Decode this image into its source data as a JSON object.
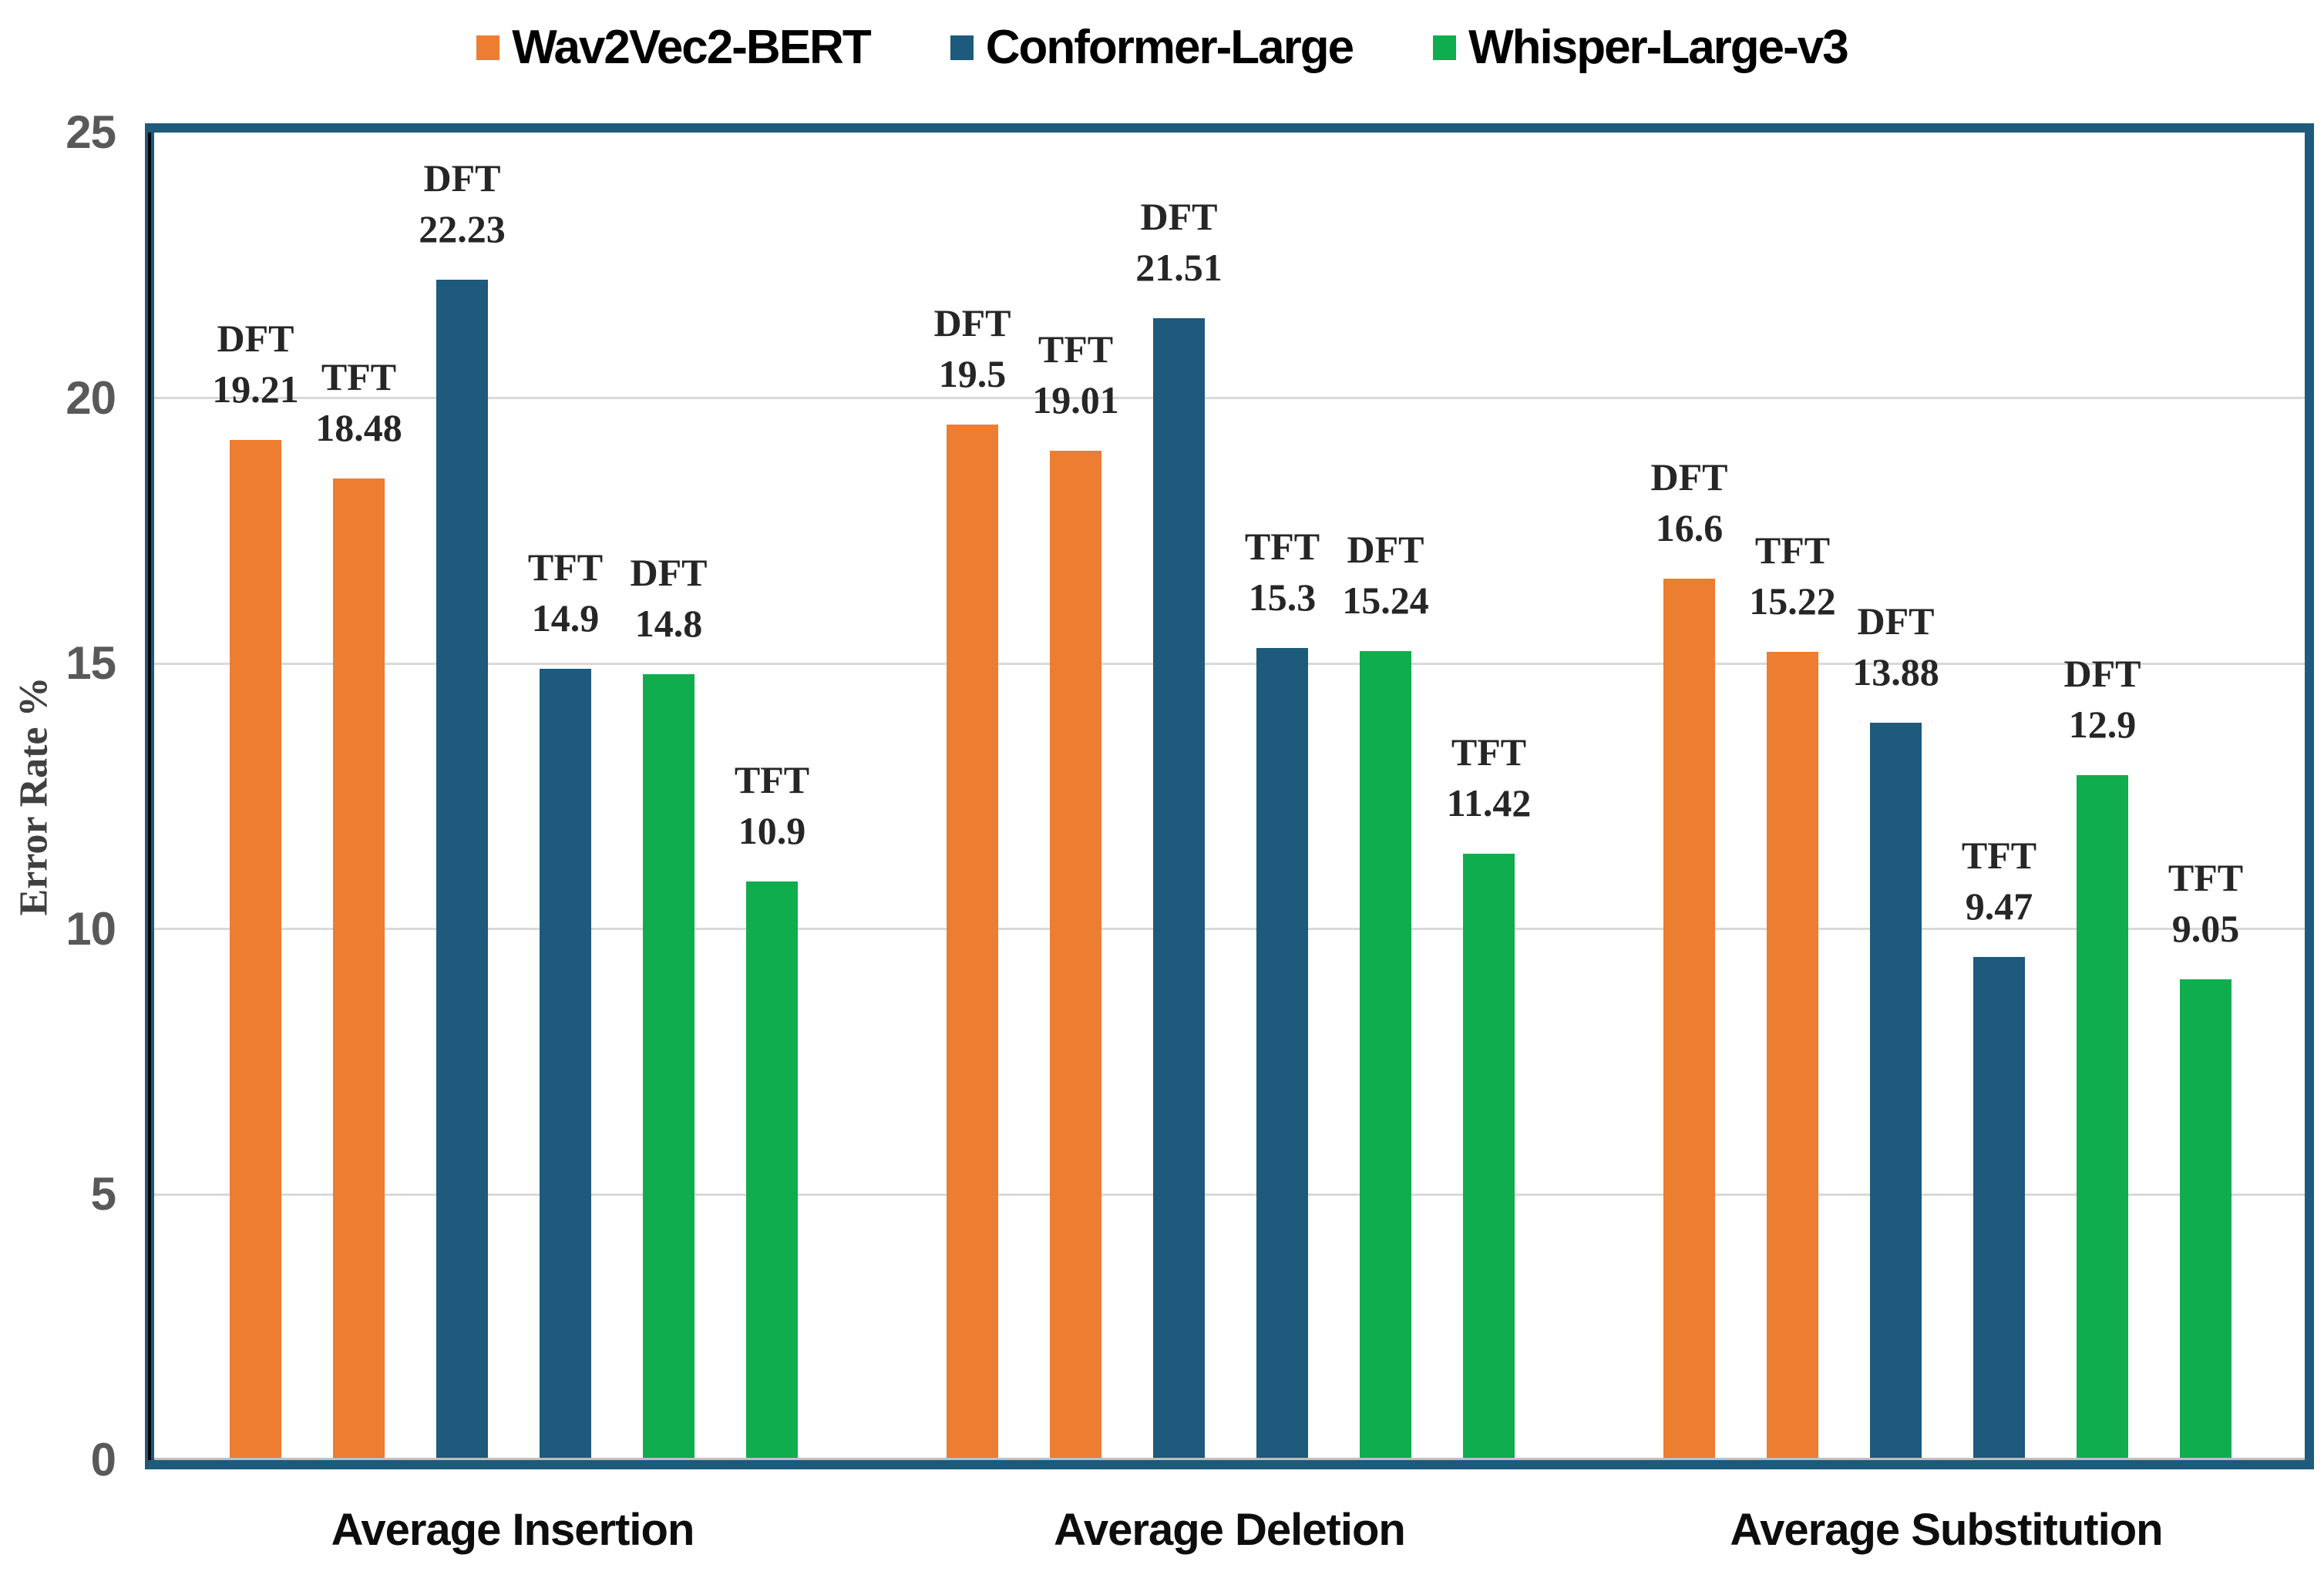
{
  "legend": {
    "items": [
      {
        "label": "Wav2Vec2-BERT",
        "color": "#ED7D31"
      },
      {
        "label": "Conformer-Large",
        "color": "#1D5A7B"
      },
      {
        "label": "Whisper-Large-v3",
        "color": "#10AD4E"
      }
    ]
  },
  "chart_data": {
    "type": "bar",
    "title": "",
    "xlabel": "",
    "ylabel": "Error Rate %",
    "ylim": [
      0,
      25
    ],
    "yticks": [
      0,
      5,
      10,
      15,
      20,
      25
    ],
    "grid": "horizontal",
    "legend_position": "top",
    "frame_color": "#1D5A7B",
    "grid_color": "#D9D9D9",
    "axis_line_color": "#BFBFBF",
    "tick_color": "#595959",
    "bar_label_color": "#262626",
    "categories": [
      "Average Insertion",
      "Average Deletion",
      "Average Substitution"
    ],
    "series": [
      {
        "name": "Wav2Vec2-BERT",
        "color": "#ED7D31",
        "DFT": [
          19.21,
          19.5,
          16.6
        ],
        "TFT": [
          18.48,
          19.01,
          15.22
        ]
      },
      {
        "name": "Conformer-Large",
        "color": "#1D5A7B",
        "DFT": [
          22.23,
          21.51,
          13.88
        ],
        "TFT": [
          14.9,
          15.3,
          9.47
        ]
      },
      {
        "name": "Whisper-Large-v3",
        "color": "#10AD4E",
        "DFT": [
          14.8,
          15.24,
          12.9
        ],
        "TFT": [
          10.9,
          11.42,
          9.05
        ]
      }
    ],
    "groups": [
      {
        "category": "Average Insertion",
        "bars": [
          {
            "series": "Wav2Vec2-BERT",
            "set": "DFT",
            "value": 19.21,
            "display": "19.21"
          },
          {
            "series": "Wav2Vec2-BERT",
            "set": "TFT",
            "value": 18.48,
            "display": "18.48"
          },
          {
            "series": "Conformer-Large",
            "set": "DFT",
            "value": 22.23,
            "display": "22.23"
          },
          {
            "series": "Conformer-Large",
            "set": "TFT",
            "value": 14.9,
            "display": "14.9"
          },
          {
            "series": "Whisper-Large-v3",
            "set": "DFT",
            "value": 14.8,
            "display": "14.8"
          },
          {
            "series": "Whisper-Large-v3",
            "set": "TFT",
            "value": 10.9,
            "display": "10.9"
          }
        ]
      },
      {
        "category": "Average Deletion",
        "bars": [
          {
            "series": "Wav2Vec2-BERT",
            "set": "DFT",
            "value": 19.5,
            "display": "19.5"
          },
          {
            "series": "Wav2Vec2-BERT",
            "set": "TFT",
            "value": 19.01,
            "display": "19.01"
          },
          {
            "series": "Conformer-Large",
            "set": "DFT",
            "value": 21.51,
            "display": "21.51"
          },
          {
            "series": "Conformer-Large",
            "set": "TFT",
            "value": 15.3,
            "display": "15.3"
          },
          {
            "series": "Whisper-Large-v3",
            "set": "DFT",
            "value": 15.24,
            "display": "15.24"
          },
          {
            "series": "Whisper-Large-v3",
            "set": "TFT",
            "value": 11.42,
            "display": "11.42"
          }
        ]
      },
      {
        "category": "Average Substitution",
        "bars": [
          {
            "series": "Wav2Vec2-BERT",
            "set": "DFT",
            "value": 16.6,
            "display": "16.6"
          },
          {
            "series": "Wav2Vec2-BERT",
            "set": "TFT",
            "value": 15.22,
            "display": "15.22"
          },
          {
            "series": "Conformer-Large",
            "set": "DFT",
            "value": 13.88,
            "display": "13.88"
          },
          {
            "series": "Conformer-Large",
            "set": "TFT",
            "value": 9.47,
            "display": "9.47"
          },
          {
            "series": "Whisper-Large-v3",
            "set": "DFT",
            "value": 12.9,
            "display": "12.9"
          },
          {
            "series": "Whisper-Large-v3",
            "set": "TFT",
            "value": 9.05,
            "display": "9.05"
          }
        ]
      }
    ]
  }
}
